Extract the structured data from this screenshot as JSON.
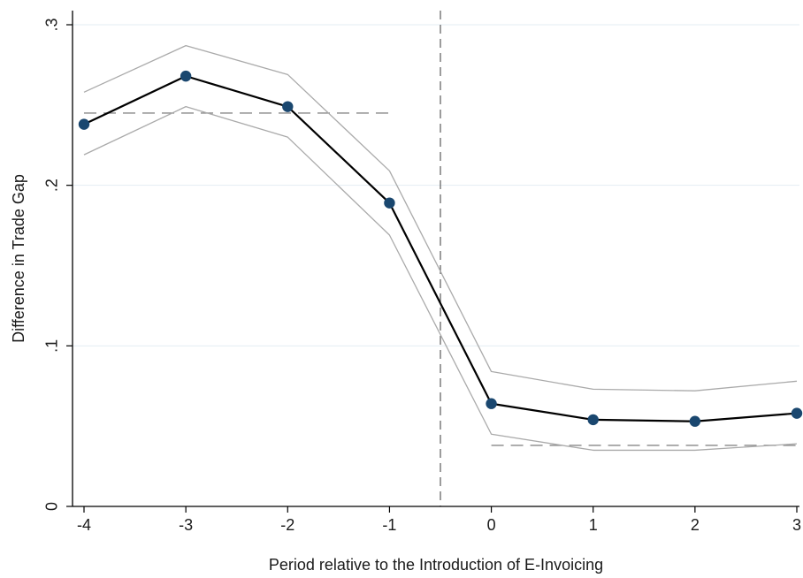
{
  "chart_data": {
    "type": "line",
    "xlabel": "Period relative to the Introduction of E-Invoicing",
    "ylabel": "Difference in Trade Gap",
    "x": [
      -4,
      -3,
      -2,
      -1,
      0,
      1,
      2,
      3
    ],
    "x_tick_labels": [
      "-4",
      "-3",
      "-2",
      "-1",
      "0",
      "1",
      "2",
      "3"
    ],
    "y_tick_labels": [
      "0",
      ".1",
      ".2",
      ".3"
    ],
    "y_ticks": [
      0,
      0.1,
      0.2,
      0.3
    ],
    "xlim": [
      -4,
      3
    ],
    "ylim": [
      0,
      0.3
    ],
    "grid": "horizontal",
    "legend": "none",
    "series": [
      {
        "role": "estimate",
        "values": [
          0.238,
          0.268,
          0.249,
          0.189,
          0.064,
          0.054,
          0.053,
          0.058
        ],
        "color": "#000000",
        "marker_color": "#1a476f"
      },
      {
        "role": "upper_ci",
        "values": [
          0.258,
          0.287,
          0.269,
          0.209,
          0.084,
          0.073,
          0.072,
          0.078
        ],
        "color": "#aaaaaa"
      },
      {
        "role": "lower_ci",
        "values": [
          0.219,
          0.249,
          0.23,
          0.169,
          0.045,
          0.035,
          0.035,
          0.039
        ],
        "color": "#aaaaaa"
      }
    ],
    "reference_lines": [
      {
        "orientation": "vertical",
        "x": -0.5,
        "style": "dashed",
        "color": "#666666"
      },
      {
        "orientation": "horizontal",
        "y": 0.245,
        "x_from": -4,
        "x_to": -1,
        "style": "dashed",
        "color": "#888888"
      },
      {
        "orientation": "horizontal",
        "y": 0.038,
        "x_from": 0,
        "x_to": 3,
        "style": "dashed",
        "color": "#888888"
      }
    ]
  }
}
